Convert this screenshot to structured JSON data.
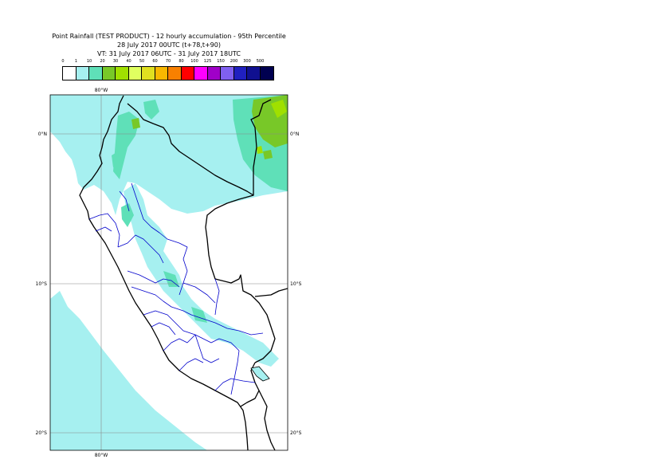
{
  "title": {
    "line1": "Point Rainfall (TEST PRODUCT) - 12 hourly accumulation - 95th Percentile",
    "line2": "28 July 2017 00UTC (t+78,t+90)",
    "line3": "VT: 31 July 2017 06UTC - 31 July 2017 18UTC"
  },
  "legend": {
    "labels": [
      "0",
      "1",
      "10",
      "20",
      "30",
      "40",
      "50",
      "60",
      "70",
      "80",
      "100",
      "125",
      "150",
      "200",
      "300",
      "500"
    ],
    "colors": [
      "#ffffff",
      "#a6f0f0",
      "#5fe0b8",
      "#78c828",
      "#a0e000",
      "#e0ff60",
      "#e0e020",
      "#f8b800",
      "#f88000",
      "#ff0000",
      "#ff00ff",
      "#a000c8",
      "#8060f0",
      "#2020c0",
      "#101090",
      "#000050"
    ]
  },
  "axes": {
    "lon_top": "80°W",
    "lon_bottom": "80°W",
    "lat_0_left": "0°N",
    "lat_0_right": "0°N",
    "lat_10_left": "10°S",
    "lat_10_right": "10°S",
    "lat_20_left": "20°S",
    "lat_20_right": "20°S"
  },
  "colors": {
    "light_rain": "#a6f0f0",
    "moderate_rain": "#5fe0b8",
    "heavy_rain": "#78c828",
    "border_national": "#000000",
    "border_regional": "#0000cc",
    "grid": "#888888"
  }
}
